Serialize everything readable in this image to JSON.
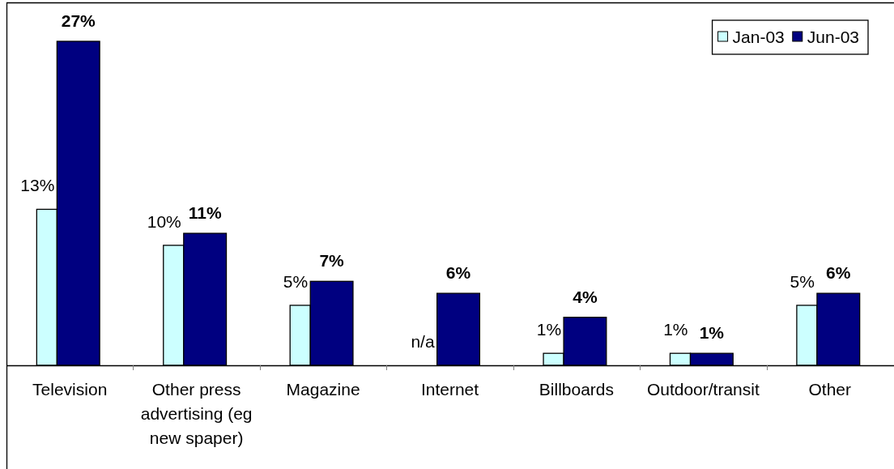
{
  "chart_data": {
    "type": "bar",
    "categories": [
      "Television",
      "Other press advertising (eg new spaper)",
      "Magazine",
      "Internet",
      "Billboards",
      "Outdoor/transit",
      "Other"
    ],
    "series": [
      {
        "name": "Jan-03",
        "color": "#ccffff",
        "values": [
          13,
          10,
          5,
          null,
          1,
          1,
          5
        ],
        "value_labels": [
          "13%",
          "10%",
          "5%",
          "n/a",
          "1%",
          "1%",
          "5%"
        ]
      },
      {
        "name": "Jun-03",
        "color": "#000080",
        "values": [
          27,
          11,
          7,
          6,
          4,
          1,
          6
        ],
        "value_labels": [
          "27%",
          "11%",
          "7%",
          "6%",
          "4%",
          "1%",
          "6%"
        ]
      }
    ],
    "legend": "top right"
  }
}
